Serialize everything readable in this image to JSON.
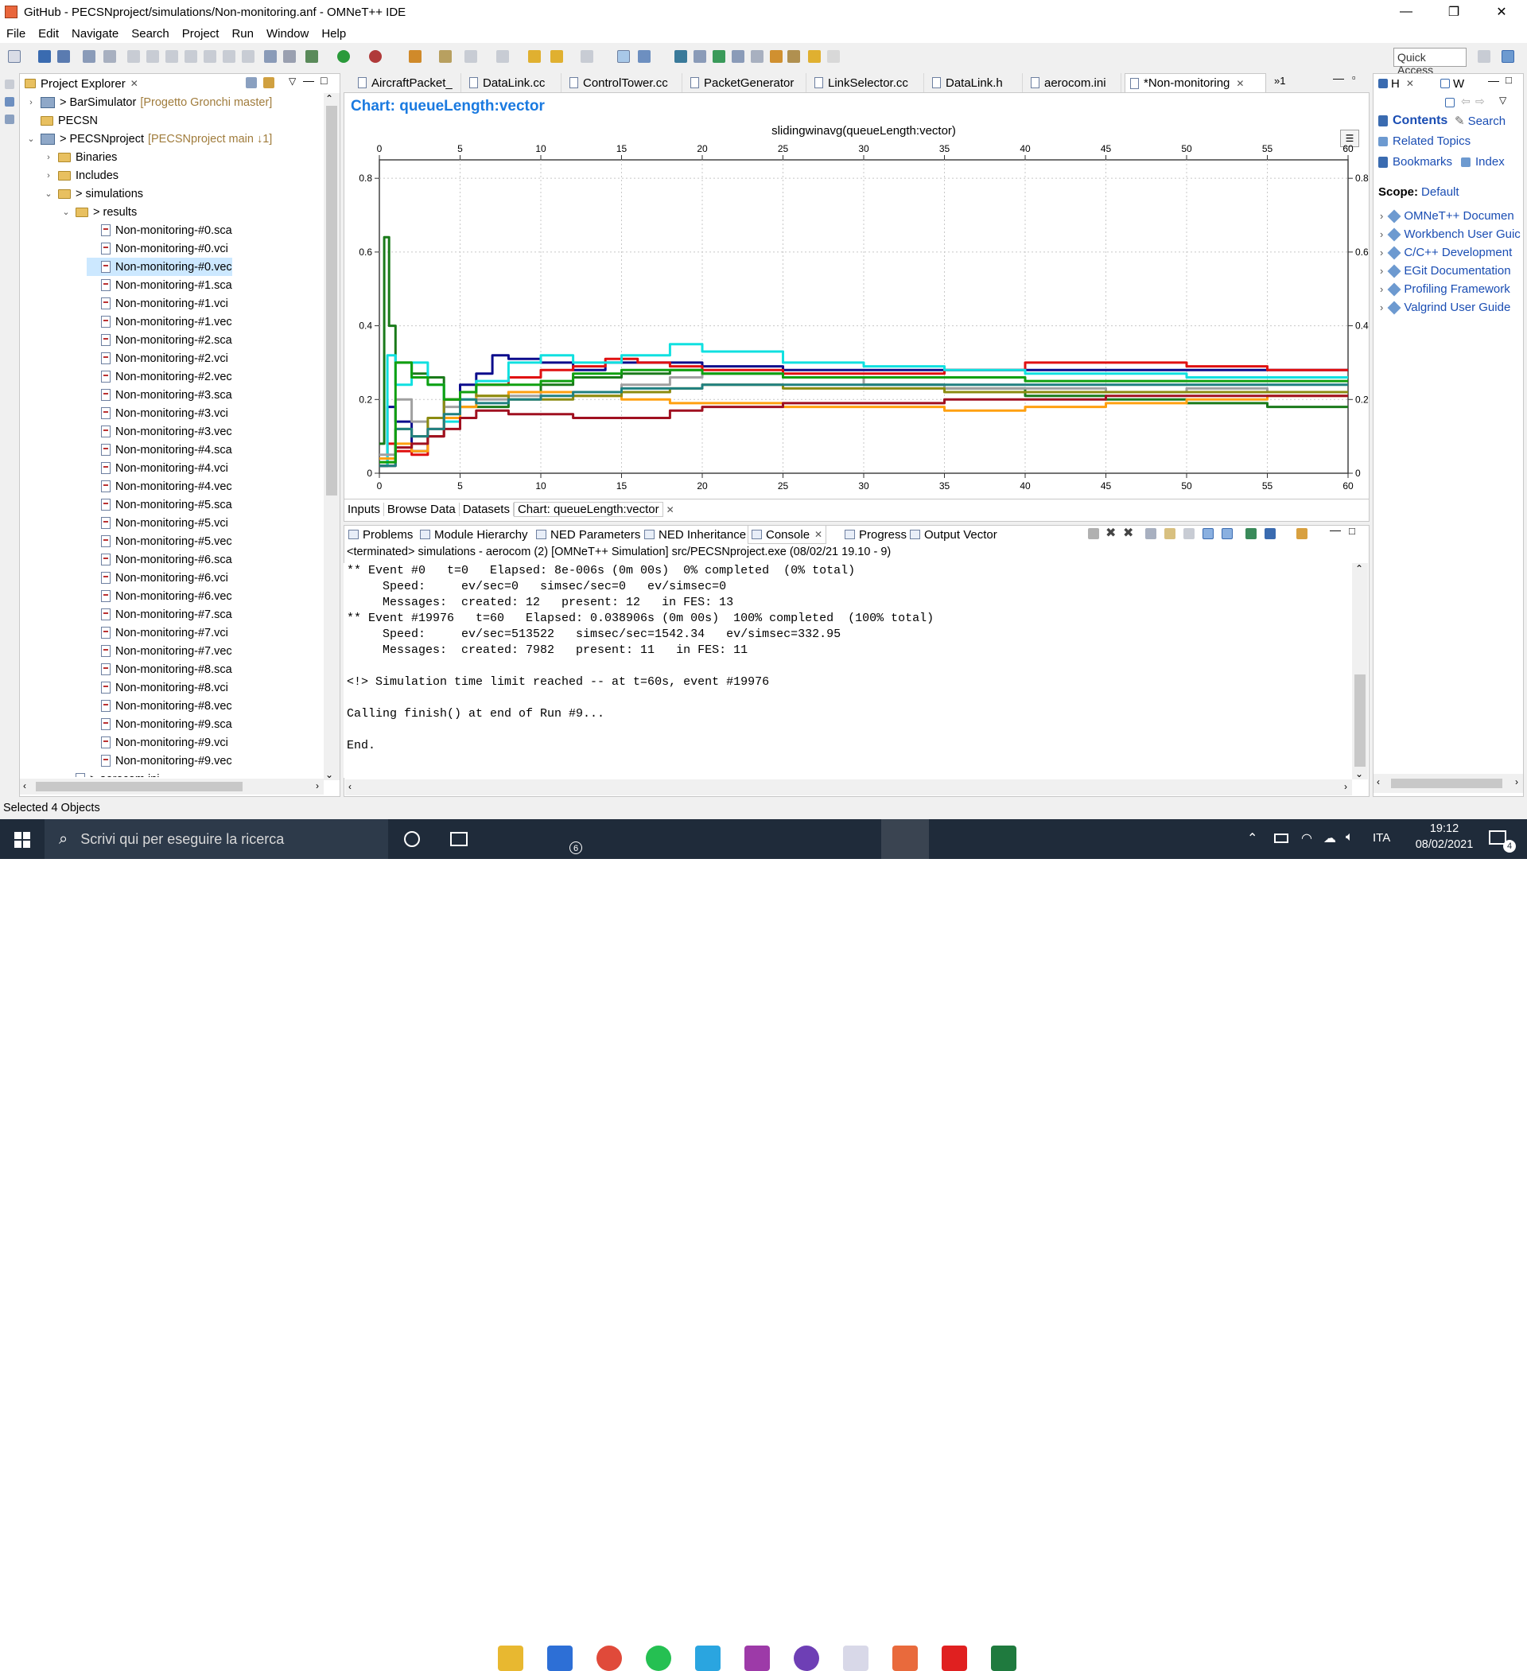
{
  "window": {
    "title": "GitHub - PECSNproject/simulations/Non-monitoring.anf - OMNeT++ IDE",
    "controls": [
      "—",
      "❐",
      "✕"
    ]
  },
  "menu": [
    "File",
    "Edit",
    "Navigate",
    "Search",
    "Project",
    "Run",
    "Window",
    "Help"
  ],
  "quick_access": "Quick Access",
  "explorer": {
    "tab_label": "Project Explorer",
    "items": [
      {
        "label": "> BarSimulator",
        "extra": "[Progetto Gronchi master]",
        "icon": "project-icon",
        "level": 0,
        "twisty": "›"
      },
      {
        "label": "PECSN",
        "extra": "",
        "icon": "folder-icon",
        "level": 0,
        "twisty": ""
      },
      {
        "label": "> PECSNproject",
        "extra": "[PECSNproject main ↓1]",
        "icon": "project-icon",
        "level": 0,
        "twisty": "⌄"
      },
      {
        "label": "Binaries",
        "extra": "",
        "icon": "folder-icon",
        "level": 1,
        "twisty": "›"
      },
      {
        "label": "Includes",
        "extra": "",
        "icon": "folder-icon",
        "level": 1,
        "twisty": "›"
      },
      {
        "label": "> simulations",
        "extra": "",
        "icon": "folder-icon",
        "level": 1,
        "twisty": "⌄"
      },
      {
        "label": "> results",
        "extra": "",
        "icon": "folder-icon",
        "level": 2,
        "twisty": "⌄"
      },
      {
        "label": "Non-monitoring-#0.sca",
        "extra": "",
        "icon": "file-icon",
        "level": 3,
        "twisty": ""
      },
      {
        "label": "Non-monitoring-#0.vci",
        "extra": "",
        "icon": "file-icon",
        "level": 3,
        "twisty": ""
      },
      {
        "label": "Non-monitoring-#0.vec",
        "extra": "",
        "icon": "file-icon",
        "level": 3,
        "twisty": "",
        "selected": true
      },
      {
        "label": "Non-monitoring-#1.sca",
        "extra": "",
        "icon": "file-icon",
        "level": 3,
        "twisty": ""
      },
      {
        "label": "Non-monitoring-#1.vci",
        "extra": "",
        "icon": "file-icon",
        "level": 3,
        "twisty": ""
      },
      {
        "label": "Non-monitoring-#1.vec",
        "extra": "",
        "icon": "file-icon",
        "level": 3,
        "twisty": ""
      },
      {
        "label": "Non-monitoring-#2.sca",
        "extra": "",
        "icon": "file-icon",
        "level": 3,
        "twisty": ""
      },
      {
        "label": "Non-monitoring-#2.vci",
        "extra": "",
        "icon": "file-icon",
        "level": 3,
        "twisty": ""
      },
      {
        "label": "Non-monitoring-#2.vec",
        "extra": "",
        "icon": "file-icon",
        "level": 3,
        "twisty": ""
      },
      {
        "label": "Non-monitoring-#3.sca",
        "extra": "",
        "icon": "file-icon",
        "level": 3,
        "twisty": ""
      },
      {
        "label": "Non-monitoring-#3.vci",
        "extra": "",
        "icon": "file-icon",
        "level": 3,
        "twisty": ""
      },
      {
        "label": "Non-monitoring-#3.vec",
        "extra": "",
        "icon": "file-icon",
        "level": 3,
        "twisty": ""
      },
      {
        "label": "Non-monitoring-#4.sca",
        "extra": "",
        "icon": "file-icon",
        "level": 3,
        "twisty": ""
      },
      {
        "label": "Non-monitoring-#4.vci",
        "extra": "",
        "icon": "file-icon",
        "level": 3,
        "twisty": ""
      },
      {
        "label": "Non-monitoring-#4.vec",
        "extra": "",
        "icon": "file-icon",
        "level": 3,
        "twisty": ""
      },
      {
        "label": "Non-monitoring-#5.sca",
        "extra": "",
        "icon": "file-icon",
        "level": 3,
        "twisty": ""
      },
      {
        "label": "Non-monitoring-#5.vci",
        "extra": "",
        "icon": "file-icon",
        "level": 3,
        "twisty": ""
      },
      {
        "label": "Non-monitoring-#5.vec",
        "extra": "",
        "icon": "file-icon",
        "level": 3,
        "twisty": ""
      },
      {
        "label": "Non-monitoring-#6.sca",
        "extra": "",
        "icon": "file-icon",
        "level": 3,
        "twisty": ""
      },
      {
        "label": "Non-monitoring-#6.vci",
        "extra": "",
        "icon": "file-icon",
        "level": 3,
        "twisty": ""
      },
      {
        "label": "Non-monitoring-#6.vec",
        "extra": "",
        "icon": "file-icon",
        "level": 3,
        "twisty": ""
      },
      {
        "label": "Non-monitoring-#7.sca",
        "extra": "",
        "icon": "file-icon",
        "level": 3,
        "twisty": ""
      },
      {
        "label": "Non-monitoring-#7.vci",
        "extra": "",
        "icon": "file-icon",
        "level": 3,
        "twisty": ""
      },
      {
        "label": "Non-monitoring-#7.vec",
        "extra": "",
        "icon": "file-icon",
        "level": 3,
        "twisty": ""
      },
      {
        "label": "Non-monitoring-#8.sca",
        "extra": "",
        "icon": "file-icon",
        "level": 3,
        "twisty": ""
      },
      {
        "label": "Non-monitoring-#8.vci",
        "extra": "",
        "icon": "file-icon",
        "level": 3,
        "twisty": ""
      },
      {
        "label": "Non-monitoring-#8.vec",
        "extra": "",
        "icon": "file-icon",
        "level": 3,
        "twisty": ""
      },
      {
        "label": "Non-monitoring-#9.sca",
        "extra": "",
        "icon": "file-icon",
        "level": 3,
        "twisty": ""
      },
      {
        "label": "Non-monitoring-#9.vci",
        "extra": "",
        "icon": "file-icon",
        "level": 3,
        "twisty": ""
      },
      {
        "label": "Non-monitoring-#9.vec",
        "extra": "",
        "icon": "file-icon",
        "level": 3,
        "twisty": ""
      },
      {
        "label": "> aerocom.ini",
        "extra": "",
        "icon": "file-icon",
        "level": 2,
        "twisty": ""
      }
    ]
  },
  "editor_tabs": [
    "AircraftPacket_",
    "DataLink.cc",
    "ControlTower.cc",
    "PacketGenerator",
    "LinkSelector.cc",
    "DataLink.h",
    "aerocom.ini",
    "*Non-monitoring"
  ],
  "editor_overflow": "»1",
  "chart_header": "Chart: queueLength:vector",
  "chart_data": {
    "type": "line",
    "title": "slidingwinavg(queueLength:vector)",
    "xlabel": "",
    "ylabel": "",
    "xlim": [
      0,
      60
    ],
    "ylim": [
      0,
      0.85
    ],
    "x_ticks": [
      "0",
      "5",
      "10",
      "15",
      "20",
      "25",
      "30",
      "35",
      "40",
      "45",
      "50",
      "55",
      "60"
    ],
    "y_ticks": [
      "0",
      "0.2",
      "0.4",
      "0.6",
      "0.8"
    ],
    "grid": true,
    "legend": "none",
    "series": [
      {
        "color": "#0c0c8c",
        "x": [
          0,
          0.5,
          1,
          2,
          3,
          4,
          5,
          6,
          7,
          8,
          10,
          12,
          14,
          16,
          18,
          20,
          25,
          30,
          35,
          40,
          45,
          50,
          55,
          60
        ],
        "y": [
          0.02,
          0.18,
          0.14,
          0.06,
          0.1,
          0.2,
          0.24,
          0.27,
          0.32,
          0.31,
          0.3,
          0.28,
          0.3,
          0.3,
          0.3,
          0.29,
          0.28,
          0.28,
          0.28,
          0.28,
          0.28,
          0.28,
          0.28,
          0.28
        ]
      },
      {
        "color": "#e01010",
        "x": [
          0,
          0.5,
          1,
          2,
          3,
          4,
          5,
          6,
          8,
          10,
          12,
          14,
          16,
          18,
          20,
          25,
          30,
          35,
          40,
          45,
          50,
          55,
          60
        ],
        "y": [
          0.02,
          0.08,
          0.06,
          0.05,
          0.12,
          0.2,
          0.22,
          0.24,
          0.26,
          0.28,
          0.29,
          0.31,
          0.3,
          0.29,
          0.28,
          0.27,
          0.27,
          0.28,
          0.3,
          0.3,
          0.29,
          0.28,
          0.28
        ]
      },
      {
        "color": "#1a7a1a",
        "x": [
          0,
          0.3,
          0.6,
          1,
          2,
          3,
          4,
          5,
          6,
          8,
          10,
          12,
          15,
          18,
          20,
          25,
          30,
          35,
          40,
          45,
          50,
          55,
          60
        ],
        "y": [
          0.08,
          0.64,
          0.4,
          0.3,
          0.27,
          0.26,
          0.2,
          0.18,
          0.18,
          0.22,
          0.24,
          0.26,
          0.27,
          0.28,
          0.27,
          0.26,
          0.24,
          0.23,
          0.21,
          0.2,
          0.19,
          0.18,
          0.18
        ]
      },
      {
        "color": "#10e0e0",
        "x": [
          0,
          0.5,
          1,
          2,
          3,
          4,
          5,
          6,
          8,
          10,
          12,
          15,
          18,
          20,
          25,
          30,
          35,
          40,
          45,
          50,
          55,
          60
        ],
        "y": [
          0.02,
          0.32,
          0.24,
          0.3,
          0.24,
          0.14,
          0.2,
          0.25,
          0.3,
          0.32,
          0.3,
          0.32,
          0.35,
          0.33,
          0.3,
          0.29,
          0.28,
          0.27,
          0.27,
          0.26,
          0.26,
          0.26
        ]
      },
      {
        "color": "#a0a0a0",
        "x": [
          0,
          1,
          2,
          3,
          4,
          5,
          6,
          8,
          10,
          12,
          15,
          18,
          20,
          22,
          25,
          30,
          35,
          40,
          45,
          50,
          55,
          60
        ],
        "y": [
          0.05,
          0.2,
          0.14,
          0.12,
          0.18,
          0.22,
          0.2,
          0.21,
          0.22,
          0.22,
          0.24,
          0.26,
          0.27,
          0.27,
          0.26,
          0.24,
          0.23,
          0.23,
          0.22,
          0.23,
          0.22,
          0.22
        ]
      },
      {
        "color": "#ffa010",
        "x": [
          0,
          1,
          2,
          3,
          4,
          5,
          6,
          8,
          10,
          12,
          15,
          18,
          20,
          25,
          30,
          35,
          40,
          45,
          50,
          55,
          60
        ],
        "y": [
          0.04,
          0.08,
          0.06,
          0.1,
          0.15,
          0.18,
          0.21,
          0.22,
          0.22,
          0.21,
          0.2,
          0.19,
          0.19,
          0.18,
          0.18,
          0.17,
          0.18,
          0.19,
          0.2,
          0.21,
          0.21
        ]
      },
      {
        "color": "#8b8b10",
        "x": [
          0,
          1,
          2,
          3,
          4,
          5,
          6,
          8,
          10,
          12,
          15,
          18,
          20,
          25,
          30,
          35,
          40,
          45,
          50,
          55,
          60
        ],
        "y": [
          0.03,
          0.12,
          0.1,
          0.15,
          0.2,
          0.22,
          0.21,
          0.2,
          0.2,
          0.21,
          0.22,
          0.23,
          0.24,
          0.23,
          0.23,
          0.22,
          0.22,
          0.22,
          0.22,
          0.22,
          0.22
        ]
      },
      {
        "color": "#a01020",
        "x": [
          0,
          1,
          2,
          3,
          4,
          5,
          6,
          8,
          10,
          12,
          15,
          18,
          20,
          25,
          30,
          35,
          40,
          45,
          50,
          55,
          60
        ],
        "y": [
          0.02,
          0.07,
          0.08,
          0.1,
          0.12,
          0.15,
          0.17,
          0.16,
          0.16,
          0.15,
          0.15,
          0.17,
          0.18,
          0.19,
          0.19,
          0.2,
          0.2,
          0.21,
          0.21,
          0.21,
          0.21
        ]
      },
      {
        "color": "#208080",
        "x": [
          0,
          1,
          2,
          3,
          4,
          5,
          6,
          8,
          10,
          12,
          15,
          18,
          20,
          25,
          30,
          35,
          40,
          45,
          50,
          55,
          60
        ],
        "y": [
          0.02,
          0.12,
          0.1,
          0.12,
          0.16,
          0.2,
          0.19,
          0.2,
          0.21,
          0.22,
          0.23,
          0.23,
          0.24,
          0.24,
          0.24,
          0.24,
          0.24,
          0.24,
          0.24,
          0.24,
          0.24
        ]
      },
      {
        "color": "#10a010",
        "x": [
          0,
          1,
          2,
          3,
          4,
          5,
          6,
          8,
          10,
          12,
          15,
          18,
          20,
          25,
          30,
          35,
          40,
          45,
          50,
          55,
          60
        ],
        "y": [
          0.03,
          0.3,
          0.26,
          0.24,
          0.2,
          0.22,
          0.24,
          0.24,
          0.25,
          0.27,
          0.28,
          0.28,
          0.27,
          0.26,
          0.26,
          0.26,
          0.25,
          0.25,
          0.25,
          0.25,
          0.25
        ]
      }
    ]
  },
  "chart_subtabs": [
    "Inputs",
    "Browse Data",
    "Datasets",
    "Chart: queueLength:vector"
  ],
  "bottom_tabs": [
    "Problems",
    "Module Hierarchy",
    "NED Parameters",
    "NED Inheritance",
    "Console",
    "Progress",
    "Output Vector"
  ],
  "console": {
    "header": "<terminated> simulations - aerocom (2) [OMNeT++ Simulation] src/PECSNproject.exe (08/02/21 19.10 - 9)",
    "lines": [
      "** Event #0   t=0   Elapsed: 8e-006s (0m 00s)  0% completed  (0% total)",
      "     Speed:     ev/sec=0   simsec/sec=0   ev/simsec=0",
      "     Messages:  created: 12   present: 12   in FES: 13",
      "** Event #19976   t=60   Elapsed: 0.038906s (0m 00s)  100% completed  (100% total)",
      "     Speed:     ev/sec=513522   simsec/sec=1542.34   ev/simsec=332.95",
      "     Messages:  created: 7982   present: 11   in FES: 11",
      "",
      "<!> Simulation time limit reached -- at t=60s, event #19976",
      "",
      "Calling finish() at end of Run #9...",
      "",
      "End."
    ]
  },
  "help": {
    "tabs": [
      "H",
      "W"
    ],
    "contents": "Contents",
    "search": "Search",
    "related": "Related Topics",
    "bookmarks": "Bookmarks",
    "index": "Index",
    "scope_label": "Scope:",
    "scope_value": "Default",
    "items": [
      "OMNeT++ Documen",
      "Workbench User Guic",
      "C/C++ Development",
      "EGit Documentation",
      "Profiling Framework",
      "Valgrind User Guide"
    ]
  },
  "status": "Selected 4 Objects",
  "taskbar": {
    "search_placeholder": "Scrivi qui per eseguire la ricerca",
    "mail_badge": "6",
    "language": "ITA",
    "time": "19:12",
    "date": "08/02/2021",
    "notif_badge": "4",
    "colors": [
      "#e8b830",
      "#2d6fd6",
      "#e04a3a",
      "#25c052",
      "#2aa5e0",
      "#9d3aa8",
      "#6e3fb5",
      "#d8d8e8",
      "#e96a3c",
      "#e02020",
      "#1f7a3e"
    ]
  }
}
